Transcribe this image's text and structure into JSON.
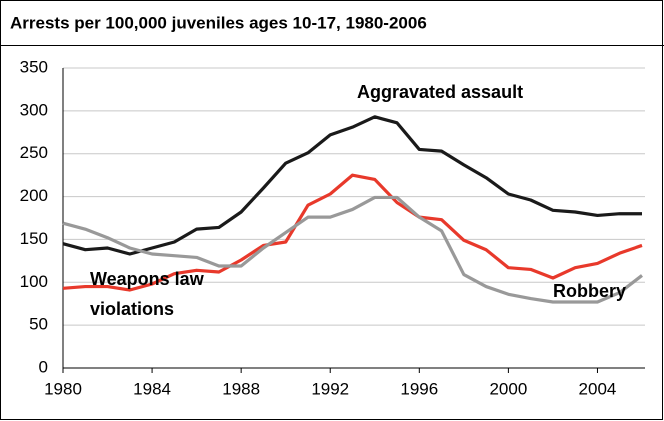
{
  "chart_data": {
    "type": "line",
    "title": "Arrests per 100,000 juveniles ages 10-17, 1980-2006",
    "x": [
      1980,
      1981,
      1982,
      1983,
      1984,
      1985,
      1986,
      1987,
      1988,
      1989,
      1990,
      1991,
      1992,
      1993,
      1994,
      1995,
      1996,
      1997,
      1998,
      1999,
      2000,
      2001,
      2002,
      2003,
      2004,
      2005,
      2006
    ],
    "series": [
      {
        "label_lines": [
          "Aggravated assault"
        ],
        "color": "#1a1a1a",
        "values": [
          145,
          138,
          140,
          133,
          140,
          147,
          162,
          164,
          182,
          210,
          239,
          251,
          272,
          281,
          293,
          286,
          255,
          253,
          237,
          222,
          203,
          196,
          184,
          182,
          178,
          180,
          180
        ]
      },
      {
        "label_lines": [
          "Weapons law",
          "violations"
        ],
        "color": "#e8392b",
        "values": [
          93,
          95,
          95,
          91,
          98,
          110,
          114,
          112,
          126,
          143,
          147,
          190,
          203,
          225,
          220,
          193,
          176,
          173,
          149,
          138,
          117,
          115,
          105,
          117,
          122,
          134,
          143
        ]
      },
      {
        "label_lines": [
          "Robbery"
        ],
        "color": "#999999",
        "values": [
          169,
          162,
          152,
          140,
          133,
          131,
          129,
          119,
          119,
          140,
          158,
          176,
          176,
          185,
          199,
          199,
          176,
          160,
          109,
          95,
          86,
          81,
          77,
          77,
          77,
          88,
          108
        ]
      }
    ],
    "xlim": [
      1980,
      2006
    ],
    "xticks": [
      1980,
      1984,
      1988,
      1992,
      1996,
      2000,
      2004
    ],
    "ylim": [
      0,
      350
    ],
    "yticks": [
      0,
      50,
      100,
      150,
      200,
      250,
      300,
      350
    ],
    "grid": true
  }
}
